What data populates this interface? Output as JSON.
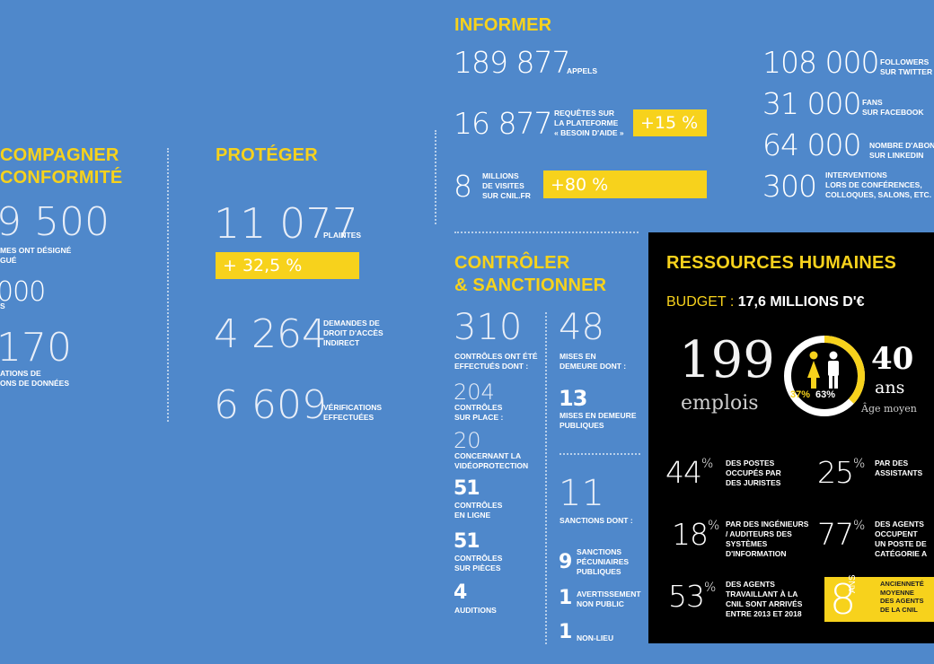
{
  "accompagner": {
    "title_l1": "COMPAGNER",
    "title_l2": "CONFORMITÉ",
    "n1": "9 500",
    "n1_l1": "MES ONT DÉSIGNÉ",
    "n1_l2": "GUÉ",
    "n2": "000",
    "n2_l1": "S",
    "n3": "170",
    "n3_l1": "ATIONS DE",
    "n3_l2": "ONS DE DONNÉES"
  },
  "proteger": {
    "title": "PROTÉGER",
    "plaintes_value": "11 077",
    "plaintes_label": "PLAINTES",
    "plaintes_growth": "+ 32,5 %",
    "droit_value": "4 264",
    "droit_l1": "DEMANDES DE",
    "droit_l2": "DROIT D'ACCÈS",
    "droit_l3": "INDIRECT",
    "verif_value": "6 609",
    "verif_l1": "VÉRIFICATIONS",
    "verif_l2": "EFFECTUÉES"
  },
  "informer": {
    "title": "INFORMER",
    "appels_value": "189 877",
    "appels_label": "APPELS",
    "requetes_value": "16 877",
    "requetes_l1": "REQUÊTES SUR",
    "requetes_l2": "LA PLATEFORME",
    "requetes_l3": "« BESOIN D'AIDE »",
    "requetes_growth": "+15 %",
    "visites_value": "8",
    "visites_l1": "MILLIONS",
    "visites_l2": "DE VISITES",
    "visites_l3": "SUR CNIL.FR",
    "visites_growth": "+80 %",
    "twitter_value": "108 000",
    "twitter_l1": "FOLLOWERS",
    "twitter_l2": "SUR TWITTER",
    "facebook_value": "31 000",
    "facebook_l1": "FANS",
    "facebook_l2": "SUR FACEBOOK",
    "linkedin_value": "64 000",
    "linkedin_l1": "NOMBRE D'ABONI",
    "linkedin_l2": "SUR LINKEDIN",
    "interv_value": "300",
    "interv_l1": "INTERVENTIONS",
    "interv_l2": "LORS DE CONFÉRENCES,",
    "interv_l3": "COLLOQUES, SALONS, ETC."
  },
  "controler": {
    "title_l1": "CONTRÔLER",
    "title_l2": "& SANCTIONNER",
    "controles_value": "310",
    "controles_l1": "CONTRÔLES ONT ÉTÉ",
    "controles_l2": "EFFECTUÉS DONT :",
    "place_value": "204",
    "place_l1": "CONTRÔLES",
    "place_l2": "SUR PLACE :",
    "video_value": "20",
    "video_l1": "CONCERNANT LA",
    "video_l2": "VIDÉOPROTECTION",
    "ligne_value": "51",
    "ligne_l1": "CONTRÔLES",
    "ligne_l2": "EN LIGNE",
    "pieces_value": "51",
    "pieces_l1": "CONTRÔLES",
    "pieces_l2": "SUR PIÈCES",
    "auditions_value": "4",
    "auditions_l1": "AUDITIONS",
    "mises_value": "48",
    "mises_l1": "MISES EN",
    "mises_l2": "DEMEURE DONT :",
    "mises_pub_value": "13",
    "mises_pub_l1": "MISES EN DEMEURE",
    "mises_pub_l2": "PUBLIQUES",
    "sanctions_value": "11",
    "sanctions_l1": "SANCTIONS DONT :",
    "pecun_value": "9",
    "pecun_l1": "SANCTIONS",
    "pecun_l2": "PÉCUNIAIRES",
    "pecun_l3": "PUBLIQUES",
    "avert_value": "1",
    "avert_l1": "AVERTISSEMENT",
    "avert_l2": "NON PUBLIC",
    "nonlieu_value": "1",
    "nonlieu_l1": "NON-LIEU"
  },
  "rh": {
    "title": "RESSOURCES HUMAINES",
    "budget_label": "BUDGET :",
    "budget_value": "17,6 MILLIONS D'€",
    "emplois_value": "199",
    "emplois_label": "emplois",
    "women_pct": "37%",
    "men_pct": "63%",
    "women_fraction": 0.37,
    "age_value": "40",
    "age_unit": "ans",
    "age_label": "Âge moyen",
    "s1_value": "44",
    "s1_l1": "DES POSTES",
    "s1_l2": "OCCUPÉS PAR",
    "s1_l3": "DES JURISTES",
    "s2_value": "25",
    "s2_l1": "PAR DES",
    "s2_l2": "ASSISTANTS",
    "s3_value": "18",
    "s3_l1": "PAR DES INGÉNIEURS",
    "s3_l2": "/ AUDITEURS DES",
    "s3_l3": "SYSTÈMES",
    "s3_l4": "D'INFORMATION",
    "s4_value": "77",
    "s4_l1": "DES AGENTS",
    "s4_l2": "OCCUPENT",
    "s4_l3": "UN POSTE DE",
    "s4_l4": "CATÉGORIE A",
    "s5_value": "53",
    "s5_l1": "DES AGENTS",
    "s5_l2": "TRAVAILLANT À LA",
    "s5_l3": "CNIL SONT ARRIVÉS",
    "s5_l4": "ENTRE 2013 ET 2018",
    "pct_sign": "%",
    "anc_value": "8",
    "anc_unit": "ANS",
    "anc_l1": "ANCIENNETÉ",
    "anc_l2": "MOYENNE",
    "anc_l3": "DES AGENTS",
    "anc_l4": "DE LA CNIL"
  },
  "colors": {
    "background": "#4f88cb",
    "accent": "#f7d21c",
    "panel": "#000000"
  }
}
